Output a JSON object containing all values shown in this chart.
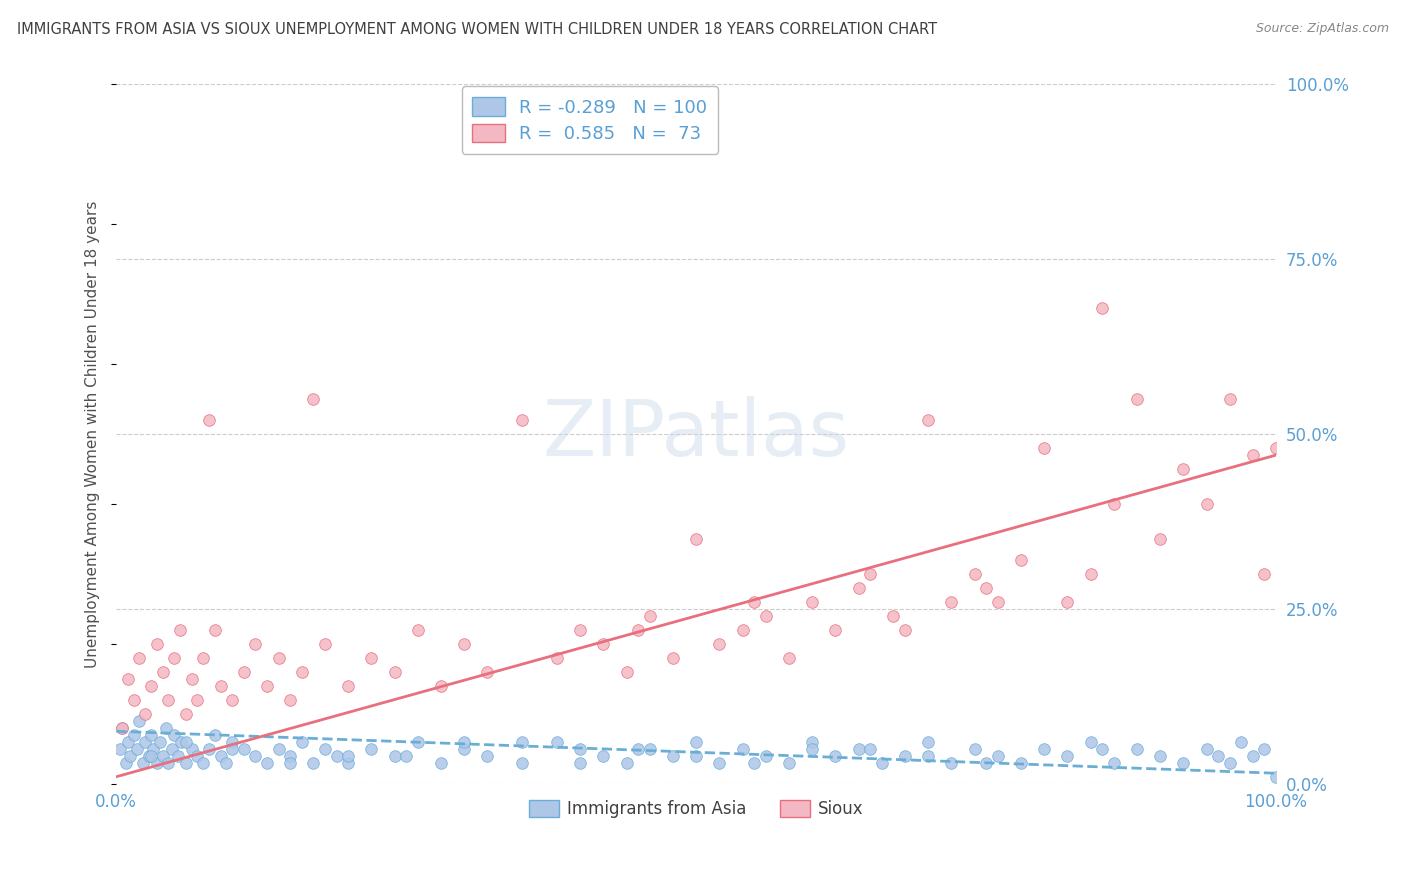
{
  "title": "IMMIGRANTS FROM ASIA VS SIOUX UNEMPLOYMENT AMONG WOMEN WITH CHILDREN UNDER 18 YEARS CORRELATION CHART",
  "source": "Source: ZipAtlas.com",
  "ylabel": "Unemployment Among Women with Children Under 18 years",
  "legend1_label": "Immigrants from Asia",
  "legend2_label": "Sioux",
  "r1": -0.289,
  "n1": 100,
  "r2": 0.585,
  "n2": 73,
  "blue_color": "#aec6e8",
  "pink_color": "#f4b8c4",
  "blue_line_color": "#6aaed6",
  "pink_line_color": "#e8707e",
  "bg_color": "#ffffff",
  "grid_color": "#cccccc",
  "title_color": "#404040",
  "axis_label_color": "#5a9fd4",
  "figsize": [
    14.06,
    8.92
  ],
  "dpi": 100,
  "xlim": [
    0,
    100
  ],
  "ylim": [
    0,
    100
  ],
  "yticks_right": [
    0,
    25,
    50,
    75,
    100
  ],
  "ytick_labels_right": [
    "0.0%",
    "25.0%",
    "50.0%",
    "75.0%",
    "100.0%"
  ],
  "xtick_labels": [
    "0.0%",
    "100.0%"
  ],
  "blue_trend": [
    7.5,
    1.5
  ],
  "pink_trend": [
    1.0,
    47.0
  ],
  "blue_scatter_x": [
    0.3,
    0.5,
    0.8,
    1.0,
    1.2,
    1.5,
    1.8,
    2.0,
    2.3,
    2.5,
    2.8,
    3.0,
    3.2,
    3.5,
    3.8,
    4.0,
    4.3,
    4.5,
    4.8,
    5.0,
    5.3,
    5.6,
    6.0,
    6.5,
    7.0,
    7.5,
    8.0,
    8.5,
    9.0,
    9.5,
    10.0,
    11.0,
    12.0,
    13.0,
    14.0,
    15.0,
    16.0,
    17.0,
    18.0,
    19.0,
    20.0,
    22.0,
    24.0,
    26.0,
    28.0,
    30.0,
    32.0,
    35.0,
    38.0,
    40.0,
    42.0,
    44.0,
    46.0,
    48.0,
    50.0,
    52.0,
    54.0,
    56.0,
    58.0,
    60.0,
    62.0,
    64.0,
    66.0,
    68.0,
    70.0,
    72.0,
    74.0,
    76.0,
    78.0,
    80.0,
    82.0,
    84.0,
    86.0,
    88.0,
    90.0,
    92.0,
    94.0,
    95.0,
    96.0,
    97.0,
    98.0,
    99.0,
    100.0,
    3.0,
    6.0,
    10.0,
    15.0,
    25.0,
    45.0,
    55.0,
    70.0,
    85.0,
    30.0,
    40.0,
    50.0,
    60.0,
    75.0,
    20.0,
    35.0,
    65.0
  ],
  "blue_scatter_y": [
    5,
    8,
    3,
    6,
    4,
    7,
    5,
    9,
    3,
    6,
    4,
    7,
    5,
    3,
    6,
    4,
    8,
    3,
    5,
    7,
    4,
    6,
    3,
    5,
    4,
    3,
    5,
    7,
    4,
    3,
    6,
    5,
    4,
    3,
    5,
    4,
    6,
    3,
    5,
    4,
    3,
    5,
    4,
    6,
    3,
    5,
    4,
    3,
    6,
    5,
    4,
    3,
    5,
    4,
    6,
    3,
    5,
    4,
    3,
    6,
    4,
    5,
    3,
    4,
    6,
    3,
    5,
    4,
    3,
    5,
    4,
    6,
    3,
    5,
    4,
    3,
    5,
    4,
    3,
    6,
    4,
    5,
    1,
    4,
    6,
    5,
    3,
    4,
    5,
    3,
    4,
    5,
    6,
    3,
    4,
    5,
    3,
    4,
    6,
    5
  ],
  "pink_scatter_x": [
    0.5,
    1.0,
    1.5,
    2.0,
    2.5,
    3.0,
    3.5,
    4.0,
    4.5,
    5.0,
    5.5,
    6.0,
    6.5,
    7.0,
    7.5,
    8.0,
    8.5,
    9.0,
    10.0,
    11.0,
    12.0,
    13.0,
    14.0,
    15.0,
    16.0,
    17.0,
    18.0,
    20.0,
    22.0,
    24.0,
    26.0,
    28.0,
    30.0,
    32.0,
    35.0,
    38.0,
    40.0,
    42.0,
    44.0,
    46.0,
    48.0,
    50.0,
    52.0,
    54.0,
    56.0,
    58.0,
    60.0,
    62.0,
    64.0,
    65.0,
    67.0,
    70.0,
    72.0,
    74.0,
    75.0,
    78.0,
    80.0,
    82.0,
    84.0,
    86.0,
    88.0,
    90.0,
    92.0,
    94.0,
    96.0,
    98.0,
    99.0,
    100.0,
    45.0,
    55.0,
    68.0,
    76.0,
    85.0
  ],
  "pink_scatter_y": [
    8,
    15,
    12,
    18,
    10,
    14,
    20,
    16,
    12,
    18,
    22,
    10,
    15,
    12,
    18,
    52,
    22,
    14,
    12,
    16,
    20,
    14,
    18,
    12,
    16,
    55,
    20,
    14,
    18,
    16,
    22,
    14,
    20,
    16,
    52,
    18,
    22,
    20,
    16,
    24,
    18,
    35,
    20,
    22,
    24,
    18,
    26,
    22,
    28,
    30,
    24,
    52,
    26,
    30,
    28,
    32,
    48,
    26,
    30,
    40,
    55,
    35,
    45,
    40,
    55,
    47,
    30,
    48,
    22,
    26,
    22,
    26,
    68
  ]
}
